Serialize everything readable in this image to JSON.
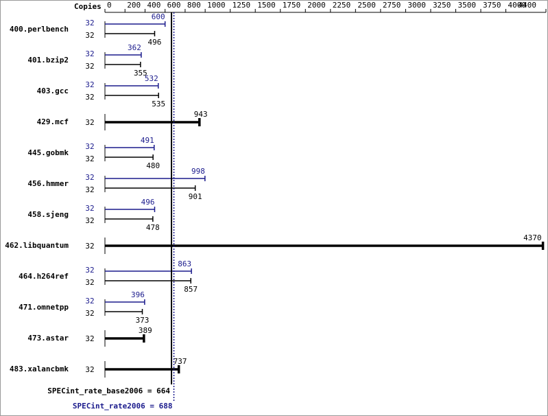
{
  "chart_data": {
    "type": "bar",
    "orientation": "horizontal",
    "copies_header": "Copies",
    "categories": [
      "400.perlbench",
      "401.bzip2",
      "403.gcc",
      "429.mcf",
      "445.gobmk",
      "456.hmmer",
      "458.sjeng",
      "462.libquantum",
      "464.h264ref",
      "471.omnetpp",
      "473.astar",
      "483.xalancbmk"
    ],
    "series": [
      {
        "color": "#1a1a8c",
        "copies": [
          32,
          32,
          32,
          null,
          32,
          32,
          32,
          null,
          32,
          32,
          null,
          null
        ],
        "values": [
          600,
          362,
          532,
          null,
          491,
          998,
          496,
          null,
          863,
          396,
          null,
          null
        ]
      },
      {
        "color": "#000000",
        "copies": [
          32,
          32,
          32,
          32,
          32,
          32,
          32,
          32,
          32,
          32,
          32,
          32
        ],
        "values": [
          496,
          355,
          535,
          943,
          480,
          901,
          478,
          4370,
          857,
          373,
          389,
          737
        ]
      }
    ],
    "xlim": [
      0,
      4400
    ],
    "xticks": [
      0,
      200,
      400,
      600,
      800,
      1000,
      1250,
      1500,
      1750,
      2000,
      2250,
      2500,
      2750,
      3000,
      3250,
      3500,
      3750,
      4000,
      4400
    ],
    "reference_lines": [
      {
        "label": "SPECint_rate_base2006 = 664",
        "value": 664,
        "color": "#000000",
        "style": "solid"
      },
      {
        "label": "SPECint_rate2006 = 688",
        "value": 688,
        "color": "#1a1a8c",
        "style": "dotted"
      }
    ]
  }
}
